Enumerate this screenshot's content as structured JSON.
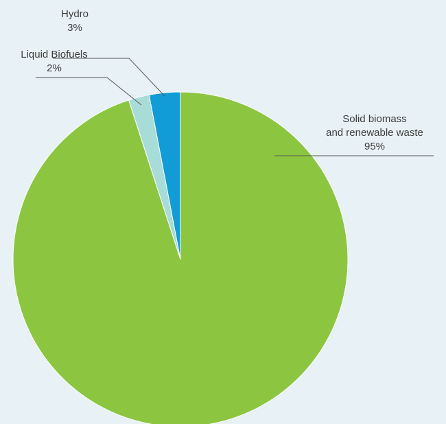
{
  "chart_data": {
    "type": "pie",
    "slices": [
      {
        "id": "hydro",
        "label": "Hydro",
        "value": 3,
        "value_label": "3%",
        "color": "#119cd8"
      },
      {
        "id": "solid",
        "label_lines": [
          "Solid biomass",
          "and renewable waste"
        ],
        "value": 95,
        "value_label": "95%",
        "color": "#8cc641"
      },
      {
        "id": "liquid",
        "label": "Liquid Biofuels",
        "value": 2,
        "value_label": "2%",
        "color": "#a8dcd9"
      }
    ],
    "start_angle_deg": 0,
    "direction": "counterclockwise-from-top-for-hydro-then-clockwise",
    "background": "#e8f1f6",
    "slice_border": "#ffffff",
    "legend": "none",
    "labels": "outside-with-leader-lines"
  }
}
